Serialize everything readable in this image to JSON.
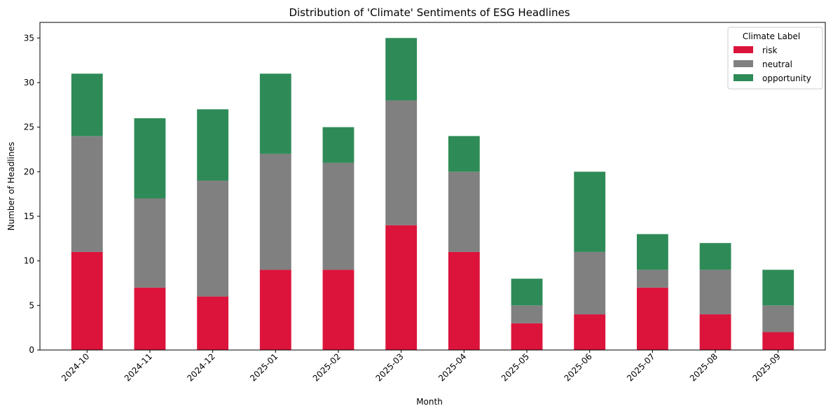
{
  "chart_data": {
    "type": "bar",
    "stacked": true,
    "title": "Distribution of 'Climate' Sentiments of ESG Headlines",
    "xlabel": "Month",
    "ylabel": "Number of Headlines",
    "ylim": [
      0,
      36.75
    ],
    "yticks": [
      0,
      5,
      10,
      15,
      20,
      25,
      30,
      35
    ],
    "categories": [
      "2024-10",
      "2024-11",
      "2024-12",
      "2025-01",
      "2025-02",
      "2025-03",
      "2025-04",
      "2025-05",
      "2025-06",
      "2025-07",
      "2025-08",
      "2025-09"
    ],
    "legend": {
      "title": "Climate Label",
      "placement": "top-right"
    },
    "series": [
      {
        "name": "risk",
        "color": "#dc143c",
        "values": [
          11,
          7,
          6,
          9,
          9,
          14,
          11,
          3,
          4,
          7,
          4,
          2
        ]
      },
      {
        "name": "neutral",
        "color": "#808080",
        "values": [
          13,
          10,
          13,
          13,
          12,
          14,
          9,
          2,
          7,
          2,
          5,
          3
        ]
      },
      {
        "name": "opportunity",
        "color": "#2e8b57",
        "values": [
          7,
          9,
          8,
          9,
          4,
          7,
          4,
          3,
          9,
          4,
          3,
          4
        ]
      }
    ],
    "grid": false
  }
}
